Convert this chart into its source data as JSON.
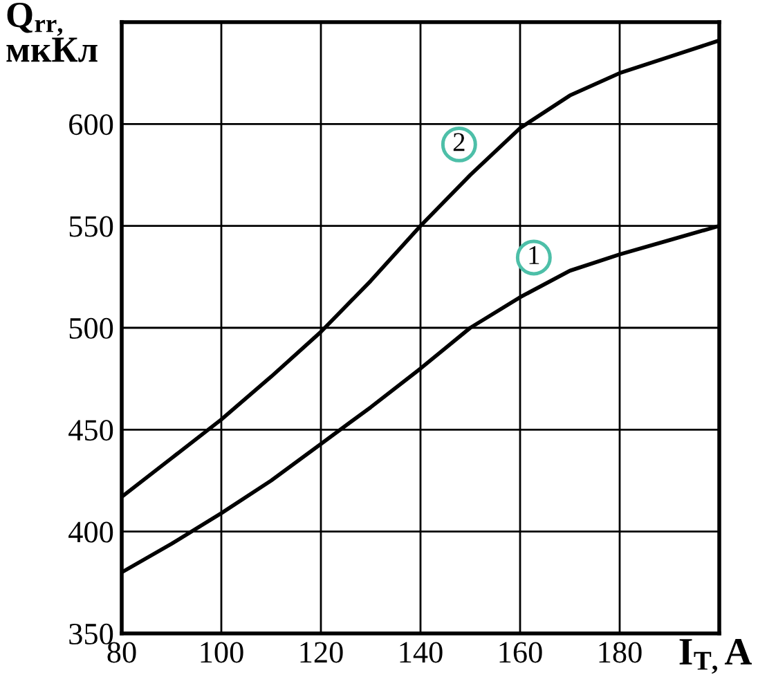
{
  "chart_data": {
    "type": "line",
    "xlabel": "I$_{T,}$A",
    "ylabel": "Q$_{rr,}$\nмкКл",
    "x": [
      80,
      90,
      100,
      110,
      120,
      130,
      140,
      150,
      160,
      170,
      180,
      190,
      200
    ],
    "series": [
      {
        "name": "1",
        "color": "#000000",
        "values": [
          380,
          394,
          409,
          425,
          443,
          461,
          480,
          500,
          515,
          528,
          536,
          543,
          550
        ]
      },
      {
        "name": "2",
        "color": "#000000",
        "values": [
          417,
          436,
          455,
          476,
          498,
          523,
          550,
          575,
          598,
          614,
          625,
          633,
          641
        ]
      }
    ],
    "xlim": [
      80,
      200
    ],
    "ylim": [
      350,
      650
    ],
    "xticks": [
      80,
      100,
      120,
      140,
      160,
      180
    ],
    "yticks": [
      350,
      400,
      450,
      500,
      550,
      600
    ],
    "grid": true,
    "legend": false,
    "line_style": "solid",
    "marker": "none"
  }
}
